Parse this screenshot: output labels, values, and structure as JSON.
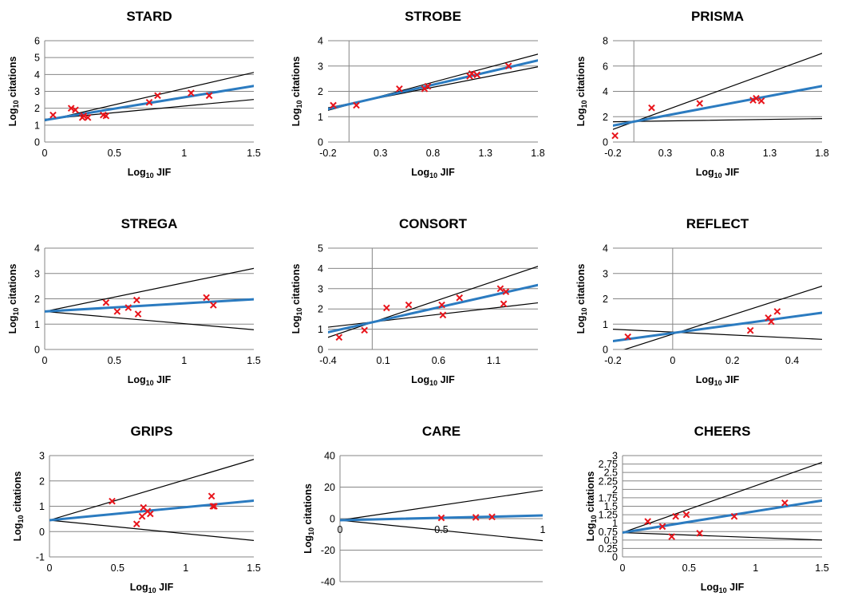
{
  "chart_data": [
    {
      "type": "scatter",
      "title": "STARD",
      "xlabel": "Log10 JIF",
      "ylabel": "Log10 citations",
      "xlim": [
        0,
        1.5
      ],
      "ylim": [
        0,
        6
      ],
      "xticks": [
        0,
        0.5,
        1,
        1.5
      ],
      "xtick_labels": [
        "0",
        "0.5",
        "1",
        "1.5"
      ],
      "yticks": [
        0,
        1,
        2,
        3,
        4,
        5,
        6
      ],
      "ytick_labels": [
        "0",
        "1",
        "2",
        "3",
        "4",
        "5",
        "6"
      ],
      "grid": "horizontal",
      "points": {
        "x": [
          0.06,
          0.19,
          0.22,
          0.27,
          0.28,
          0.31,
          0.42,
          0.44,
          0.75,
          0.81,
          1.05,
          1.18
        ],
        "y": [
          1.6,
          2.0,
          1.9,
          1.45,
          1.55,
          1.45,
          1.6,
          1.55,
          2.35,
          2.75,
          2.9,
          2.75
        ]
      },
      "fit_line": {
        "x": [
          0,
          1.5
        ],
        "y": [
          1.3,
          3.32
        ]
      },
      "ci_upper": {
        "x": [
          0,
          1.5
        ],
        "y": [
          1.25,
          4.12
        ]
      },
      "ci_lower": {
        "x": [
          0,
          1.5
        ],
        "y": [
          1.35,
          2.52
        ]
      }
    },
    {
      "type": "scatter",
      "title": "STROBE",
      "xlabel": "Log10 JIF",
      "ylabel": "Log10 citations",
      "xlim": [
        -0.2,
        1.8
      ],
      "ylim": [
        0,
        4
      ],
      "xticks": [
        -0.2,
        0.3,
        0.8,
        1.3,
        1.8
      ],
      "xtick_labels": [
        "-0.2",
        "0.3",
        "0.8",
        "1.3",
        "1.8"
      ],
      "yticks": [
        0,
        1,
        2,
        3,
        4
      ],
      "ytick_labels": [
        "0",
        "1",
        "2",
        "3",
        "4"
      ],
      "grid": "horizontal",
      "points": {
        "x": [
          -0.15,
          0.07,
          0.48,
          0.72,
          0.75,
          1.15,
          1.17,
          1.22,
          1.52
        ],
        "y": [
          1.45,
          1.45,
          2.1,
          2.1,
          2.2,
          2.6,
          2.7,
          2.65,
          3.0
        ]
      },
      "fit_line": {
        "x": [
          -0.2,
          1.8
        ],
        "y": [
          1.3,
          3.22
        ]
      },
      "ci_upper": {
        "x": [
          -0.2,
          1.8
        ],
        "y": [
          1.25,
          3.47
        ]
      },
      "ci_lower": {
        "x": [
          -0.2,
          1.8
        ],
        "y": [
          1.35,
          2.97
        ]
      }
    },
    {
      "type": "scatter",
      "title": "PRISMA",
      "xlabel": "Log10 JIF",
      "ylabel": "Log10 citations",
      "xlim": [
        -0.2,
        1.8
      ],
      "ylim": [
        0,
        8
      ],
      "xticks": [
        -0.2,
        0.3,
        0.8,
        1.3,
        1.8
      ],
      "xtick_labels": [
        "-0.2",
        "0.3",
        "0.8",
        "1.3",
        "1.8"
      ],
      "yticks": [
        0,
        2,
        4,
        6,
        8
      ],
      "ytick_labels": [
        "0",
        "2",
        "4",
        "6",
        "8"
      ],
      "grid": "horizontal",
      "points": {
        "x": [
          -0.18,
          0.17,
          0.63,
          1.14,
          1.17,
          1.22
        ],
        "y": [
          0.5,
          2.7,
          3.05,
          3.3,
          3.45,
          3.25
        ]
      },
      "fit_line": {
        "x": [
          -0.2,
          1.8
        ],
        "y": [
          1.3,
          4.42
        ]
      },
      "ci_upper": {
        "x": [
          -0.2,
          1.8
        ],
        "y": [
          1.0,
          7.0
        ]
      },
      "ci_lower": {
        "x": [
          -0.2,
          1.8
        ],
        "y": [
          1.6,
          1.85
        ]
      }
    },
    {
      "type": "scatter",
      "title": "STREGA",
      "xlabel": "Log10 JIF",
      "ylabel": "Log10 citations",
      "xlim": [
        0,
        1.5
      ],
      "ylim": [
        0,
        4
      ],
      "xticks": [
        0,
        0.5,
        1,
        1.5
      ],
      "xtick_labels": [
        "0",
        "0.5",
        "1",
        "1.5"
      ],
      "yticks": [
        0,
        1,
        2,
        3,
        4
      ],
      "ytick_labels": [
        "0",
        "1",
        "2",
        "3",
        "4"
      ],
      "grid": "horizontal",
      "points": {
        "x": [
          0.44,
          0.52,
          0.6,
          0.66,
          0.67,
          1.16,
          1.21
        ],
        "y": [
          1.85,
          1.5,
          1.65,
          1.95,
          1.4,
          2.05,
          1.75
        ]
      },
      "fit_line": {
        "x": [
          0,
          1.5
        ],
        "y": [
          1.5,
          1.98
        ]
      },
      "ci_upper": {
        "x": [
          0,
          1.5
        ],
        "y": [
          1.5,
          3.2
        ]
      },
      "ci_lower": {
        "x": [
          0,
          1.5
        ],
        "y": [
          1.5,
          0.78
        ]
      }
    },
    {
      "type": "scatter",
      "title": "CONSORT",
      "xlabel": "Log10 JIF",
      "ylabel": "Log10 citations",
      "xlim": [
        -0.4,
        1.5
      ],
      "ylim": [
        0,
        5
      ],
      "xticks": [
        -0.4,
        0.1,
        0.6,
        1.1
      ],
      "xtick_labels": [
        "-0.4",
        "0.1",
        "0.6",
        "1.1"
      ],
      "yticks": [
        0,
        1,
        2,
        3,
        4,
        5
      ],
      "ytick_labels": [
        "0",
        "1",
        "2",
        "3",
        "4",
        "5"
      ],
      "grid": "horizontal",
      "points": {
        "x": [
          -0.3,
          -0.07,
          0.13,
          0.33,
          0.63,
          0.64,
          0.79,
          1.16,
          1.19,
          1.21
        ],
        "y": [
          0.6,
          0.95,
          2.05,
          2.2,
          2.2,
          1.7,
          2.55,
          3.0,
          2.25,
          2.85
        ]
      },
      "fit_line": {
        "x": [
          -0.4,
          1.5
        ],
        "y": [
          0.85,
          3.18
        ]
      },
      "ci_upper": {
        "x": [
          -0.4,
          1.5
        ],
        "y": [
          0.6,
          4.1
        ]
      },
      "ci_lower": {
        "x": [
          -0.4,
          1.5
        ],
        "y": [
          1.1,
          2.3
        ]
      }
    },
    {
      "type": "scatter",
      "title": "REFLECT",
      "xlabel": "Log10 JIF",
      "ylabel": "Log10 citations",
      "xlim": [
        -0.2,
        0.5
      ],
      "ylim": [
        0,
        4
      ],
      "xticks": [
        -0.2,
        0,
        0.2,
        0.4
      ],
      "xtick_labels": [
        "-0.2",
        "0",
        "0.2",
        "0.4"
      ],
      "yticks": [
        0,
        1,
        2,
        3,
        4
      ],
      "ytick_labels": [
        "0",
        "1",
        "2",
        "3",
        "4"
      ],
      "grid": "horizontal",
      "points": {
        "x": [
          -0.15,
          0.26,
          0.32,
          0.33,
          0.35
        ],
        "y": [
          0.5,
          0.75,
          1.25,
          1.1,
          1.5
        ]
      },
      "fit_line": {
        "x": [
          -0.2,
          0.5
        ],
        "y": [
          0.33,
          1.45
        ]
      },
      "ci_upper": {
        "x": [
          -0.2,
          0.5
        ],
        "y": [
          -0.15,
          2.5
        ]
      },
      "ci_lower": {
        "x": [
          -0.2,
          0.5
        ],
        "y": [
          0.8,
          0.4
        ]
      }
    },
    {
      "type": "scatter",
      "title": "GRIPS",
      "xlabel": "Log10 JIF",
      "ylabel": "Log10 citations",
      "xlim": [
        0,
        1.5
      ],
      "ylim": [
        -1,
        3
      ],
      "xticks": [
        0,
        0.5,
        1,
        1.5
      ],
      "xtick_labels": [
        "0",
        "0.5",
        "1",
        "1.5"
      ],
      "yticks": [
        -1,
        0,
        1,
        2,
        3
      ],
      "ytick_labels": [
        "-1",
        "0",
        "1",
        "2",
        "3"
      ],
      "grid": "horizontal",
      "points": {
        "x": [
          0.46,
          0.64,
          0.68,
          0.69,
          0.72,
          0.74,
          1.19,
          1.2,
          1.21
        ],
        "y": [
          1.2,
          0.3,
          0.6,
          0.95,
          0.8,
          0.7,
          1.4,
          1.0,
          1.0
        ]
      },
      "fit_line": {
        "x": [
          0,
          1.5
        ],
        "y": [
          0.45,
          1.22
        ]
      },
      "ci_upper": {
        "x": [
          0,
          1.5
        ],
        "y": [
          0.45,
          2.85
        ]
      },
      "ci_lower": {
        "x": [
          0,
          1.5
        ],
        "y": [
          0.45,
          -0.35
        ]
      }
    },
    {
      "type": "scatter",
      "title": "CARE",
      "xlabel": "Log10 JIF",
      "ylabel": "Log10 citations",
      "xlim": [
        0,
        1
      ],
      "ylim": [
        -40,
        40
      ],
      "xticks": [
        0,
        0.5,
        1
      ],
      "xtick_labels": [
        "0",
        "0.5",
        "1"
      ],
      "yticks": [
        -40,
        -20,
        0,
        20,
        40
      ],
      "ytick_labels": [
        "-40",
        "-20",
        "0",
        "20",
        "40"
      ],
      "grid": "horizontal",
      "points": {
        "x": [
          0.5,
          0.67,
          0.75
        ],
        "y": [
          0.5,
          0.8,
          1.1
        ]
      },
      "fit_line": {
        "x": [
          0,
          1
        ],
        "y": [
          -1,
          2
        ]
      },
      "ci_upper": {
        "x": [
          0,
          1
        ],
        "y": [
          -1,
          18
        ]
      },
      "ci_lower": {
        "x": [
          0,
          1
        ],
        "y": [
          -1,
          -14
        ]
      }
    },
    {
      "type": "scatter",
      "title": "CHEERS",
      "xlabel": "Log10 JIF",
      "ylabel": "Log10 citations",
      "xlim": [
        0,
        1.5
      ],
      "ylim": [
        0,
        3
      ],
      "xticks": [
        0,
        0.5,
        1,
        1.5
      ],
      "xtick_labels": [
        "0",
        "0.5",
        "1",
        "1.5"
      ],
      "yticks": [
        0,
        0.25,
        0.5,
        0.75,
        1,
        1.25,
        1.5,
        1.75,
        2,
        2.25,
        2.5,
        2.75,
        3
      ],
      "ytick_labels": [
        "0",
        "0.25",
        "0.5",
        "0.75",
        "1",
        "1.25",
        "1.5",
        "1.75",
        "2",
        "2.25",
        "2.5",
        "2.75",
        "3"
      ],
      "grid": "horizontal",
      "points": {
        "x": [
          0.19,
          0.3,
          0.37,
          0.4,
          0.48,
          0.58,
          0.84,
          1.22
        ],
        "y": [
          1.05,
          0.9,
          0.6,
          1.2,
          1.25,
          0.7,
          1.2,
          1.6
        ]
      },
      "fit_line": {
        "x": [
          0,
          1.5
        ],
        "y": [
          0.72,
          1.67
        ]
      },
      "ci_upper": {
        "x": [
          0,
          1.5
        ],
        "y": [
          0.72,
          2.8
        ]
      },
      "ci_lower": {
        "x": [
          0,
          1.5
        ],
        "y": [
          0.72,
          0.5
        ]
      }
    }
  ],
  "style": {
    "point_color": "#e8141b",
    "fit_color": "#2b7bc0",
    "ci_color": "#000000",
    "grid_color": "#868686",
    "axis_color": "#868686",
    "point_marker": "x"
  }
}
